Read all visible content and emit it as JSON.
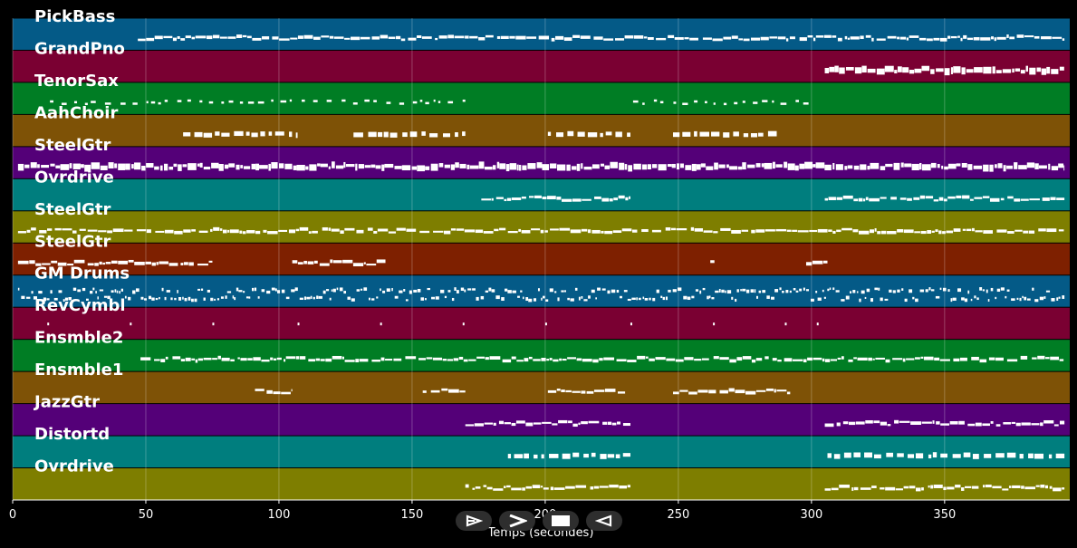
{
  "chart_data": {
    "type": "piano-roll",
    "xlabel": "Temps (secondes)",
    "xlim": [
      0,
      397
    ],
    "x_ticks": [
      0,
      50,
      100,
      150,
      200,
      250,
      300,
      350
    ],
    "x_tick_labels": [
      "0",
      "50",
      "100",
      "150",
      "200",
      "250",
      "300",
      "350"
    ],
    "grid": true,
    "tracks": [
      {
        "name": "PickBass",
        "color": "#045a87",
        "segments": [
          [
            47,
            395
          ]
        ],
        "style": "line"
      },
      {
        "name": "GrandPno",
        "color": "#7a0032",
        "segments": [
          [
            305,
            395
          ]
        ],
        "style": "dense"
      },
      {
        "name": "TenorSax",
        "color": "#007d24",
        "segments": [
          [
            14,
            170
          ],
          [
            233,
            302
          ]
        ],
        "style": "sparse"
      },
      {
        "name": "AahChoir",
        "color": "#7e5206",
        "segments": [
          [
            64,
            107
          ],
          [
            128,
            170
          ],
          [
            201,
            232
          ],
          [
            248,
            288
          ]
        ],
        "style": "blocks"
      },
      {
        "name": "SteelGtr",
        "color": "#540078",
        "segments": [
          [
            2,
            395
          ]
        ],
        "style": "dense"
      },
      {
        "name": "Ovrdrive",
        "color": "#007e7e",
        "segments": [
          [
            176,
            232
          ],
          [
            305,
            395
          ]
        ],
        "style": "line"
      },
      {
        "name": "SteelGtr",
        "color": "#7e7e00",
        "segments": [
          [
            2,
            395
          ]
        ],
        "style": "line"
      },
      {
        "name": "SteelGtr",
        "color": "#7e2000",
        "segments": [
          [
            2,
            75
          ],
          [
            105,
            140
          ],
          [
            262,
            264
          ],
          [
            298,
            306
          ]
        ],
        "style": "line"
      },
      {
        "name": "GM Drums",
        "color": "#045a87",
        "segments": [
          [
            2,
            395
          ]
        ],
        "style": "drums"
      },
      {
        "name": "RevCymbl",
        "color": "#7a0032",
        "segments": [
          [
            13,
            14
          ],
          [
            44,
            45
          ],
          [
            75,
            76
          ],
          [
            107,
            108
          ],
          [
            138,
            139
          ],
          [
            169,
            170
          ],
          [
            200,
            201
          ],
          [
            232,
            233
          ],
          [
            263,
            264
          ],
          [
            290,
            291
          ],
          [
            302,
            303
          ]
        ],
        "style": "ticks"
      },
      {
        "name": "Ensmble2",
        "color": "#007d24",
        "segments": [
          [
            48,
            395
          ]
        ],
        "style": "line"
      },
      {
        "name": "Ensmble1",
        "color": "#7e5206",
        "segments": [
          [
            91,
            105
          ],
          [
            154,
            170
          ],
          [
            201,
            230
          ],
          [
            248,
            292
          ]
        ],
        "style": "line"
      },
      {
        "name": "JazzGtr",
        "color": "#540078",
        "segments": [
          [
            170,
            232
          ],
          [
            305,
            395
          ]
        ],
        "style": "line"
      },
      {
        "name": "Distortd",
        "color": "#007e7e",
        "segments": [
          [
            186,
            232
          ],
          [
            306,
            395
          ]
        ],
        "style": "blocks"
      },
      {
        "name": "Ovrdrive",
        "color": "#7e7e00",
        "segments": [
          [
            170,
            232
          ],
          [
            305,
            395
          ]
        ],
        "style": "line"
      }
    ]
  },
  "controls": [
    {
      "name": "rewind-button",
      "icon": "rewind-icon"
    },
    {
      "name": "play-button",
      "icon": "play-icon"
    },
    {
      "name": "stop-button",
      "icon": "stop-icon"
    },
    {
      "name": "forward-button",
      "icon": "forward-icon"
    }
  ]
}
